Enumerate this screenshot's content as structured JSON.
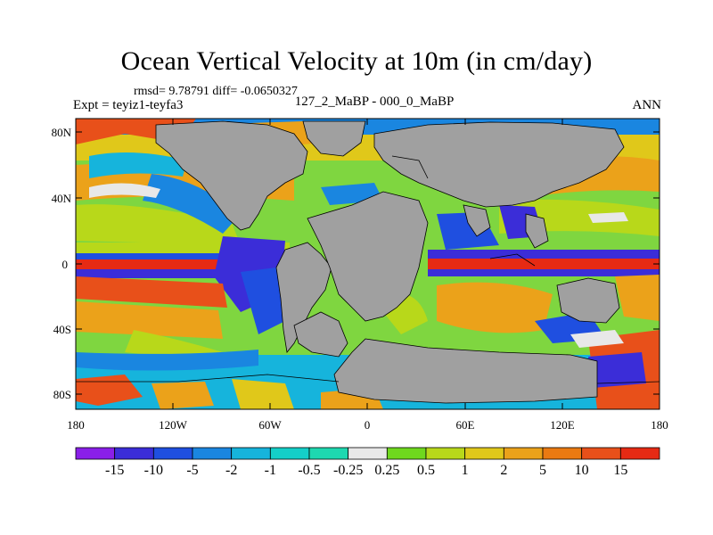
{
  "header": {
    "title": "Ocean Vertical Velocity at 10m (in cm/day)",
    "stats": "rmsd= 9.78791 diff= -0.0650327",
    "experiment": "Expt = teyiz1-teyfa3",
    "comparison": "127_2_MaBP - 000_0_MaBP",
    "season": "ANN"
  },
  "axes": {
    "lat_labels": [
      "80N",
      "40N",
      "0",
      "40S",
      "80S"
    ],
    "lon_labels": [
      "180",
      "120W",
      "60W",
      "0",
      "60E",
      "120E",
      "180"
    ]
  },
  "colorbar": {
    "labels": [
      "-15",
      "-10",
      "-5",
      "-2",
      "-1",
      "-0.5",
      "-0.25",
      "0.25",
      "0.5",
      "1",
      "2",
      "5",
      "10",
      "15"
    ],
    "colors": [
      "#8a1fe8",
      "#3b2dd8",
      "#1f4fe0",
      "#1a86e0",
      "#16b4dc",
      "#14cfc8",
      "#1ed8b0",
      "#e8e8e8",
      "#6fd81e",
      "#b8d81a",
      "#e0c81a",
      "#eba21a",
      "#ea7a12",
      "#e8501a",
      "#e62a14"
    ]
  },
  "map": {
    "land_color": "#a0a0a0",
    "background_color": "#7fd640"
  }
}
